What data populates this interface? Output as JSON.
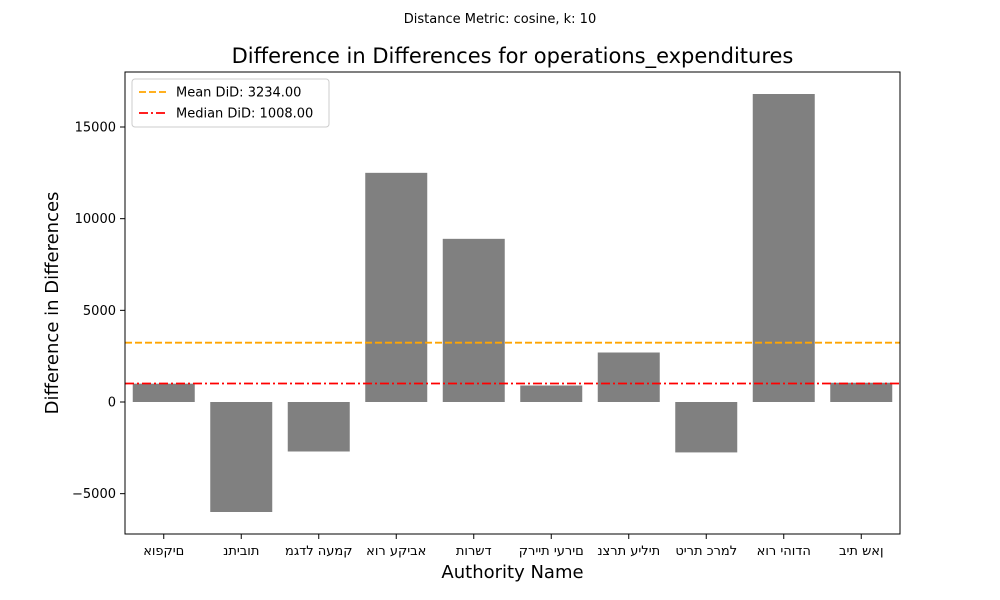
{
  "chart_data": {
    "type": "bar",
    "suptitle": "Distance Metric: cosine, k: 10",
    "title": "Difference in Differences for operations_expenditures",
    "xlabel": "Authority Name",
    "ylabel": "Difference in Differences",
    "categories": [
      "אופקים",
      "נתיבות",
      "מגדל העמק",
      "אור עקיבא",
      "תורשד",
      "קריית יערים",
      "נצרת עלית",
      "טירת כרמל",
      "אור יהודה",
      "בית שאן"
    ],
    "tick_labels": [
      "םיקפוא",
      "תוביתנ",
      "קמעה לדגמ",
      "אביקע רוא",
      "דשרות",
      "םירעי תיירק",
      "תיליע תרצנ",
      "למרכ תריט",
      "הדוהי רוא",
      "ןאש תיב"
    ],
    "values": [
      1000,
      -6000,
      -2700,
      12500,
      8900,
      900,
      2700,
      -2750,
      16800,
      1050
    ],
    "bar_color": "#808080",
    "ylim": [
      -7200,
      18000
    ],
    "yticks": [
      -5000,
      0,
      5000,
      10000,
      15000
    ],
    "ytick_labels": [
      "−5000",
      "0",
      "5000",
      "10000",
      "15000"
    ],
    "reference_lines": [
      {
        "label": "Mean DiD: 3234.00",
        "value": 3234.0,
        "color": "#ffa500",
        "style": "dashed"
      },
      {
        "label": "Median DiD: 1008.00",
        "value": 1008.0,
        "color": "#ff0000",
        "style": "dashdot"
      }
    ],
    "legend_position": "upper-left",
    "grid": false
  }
}
